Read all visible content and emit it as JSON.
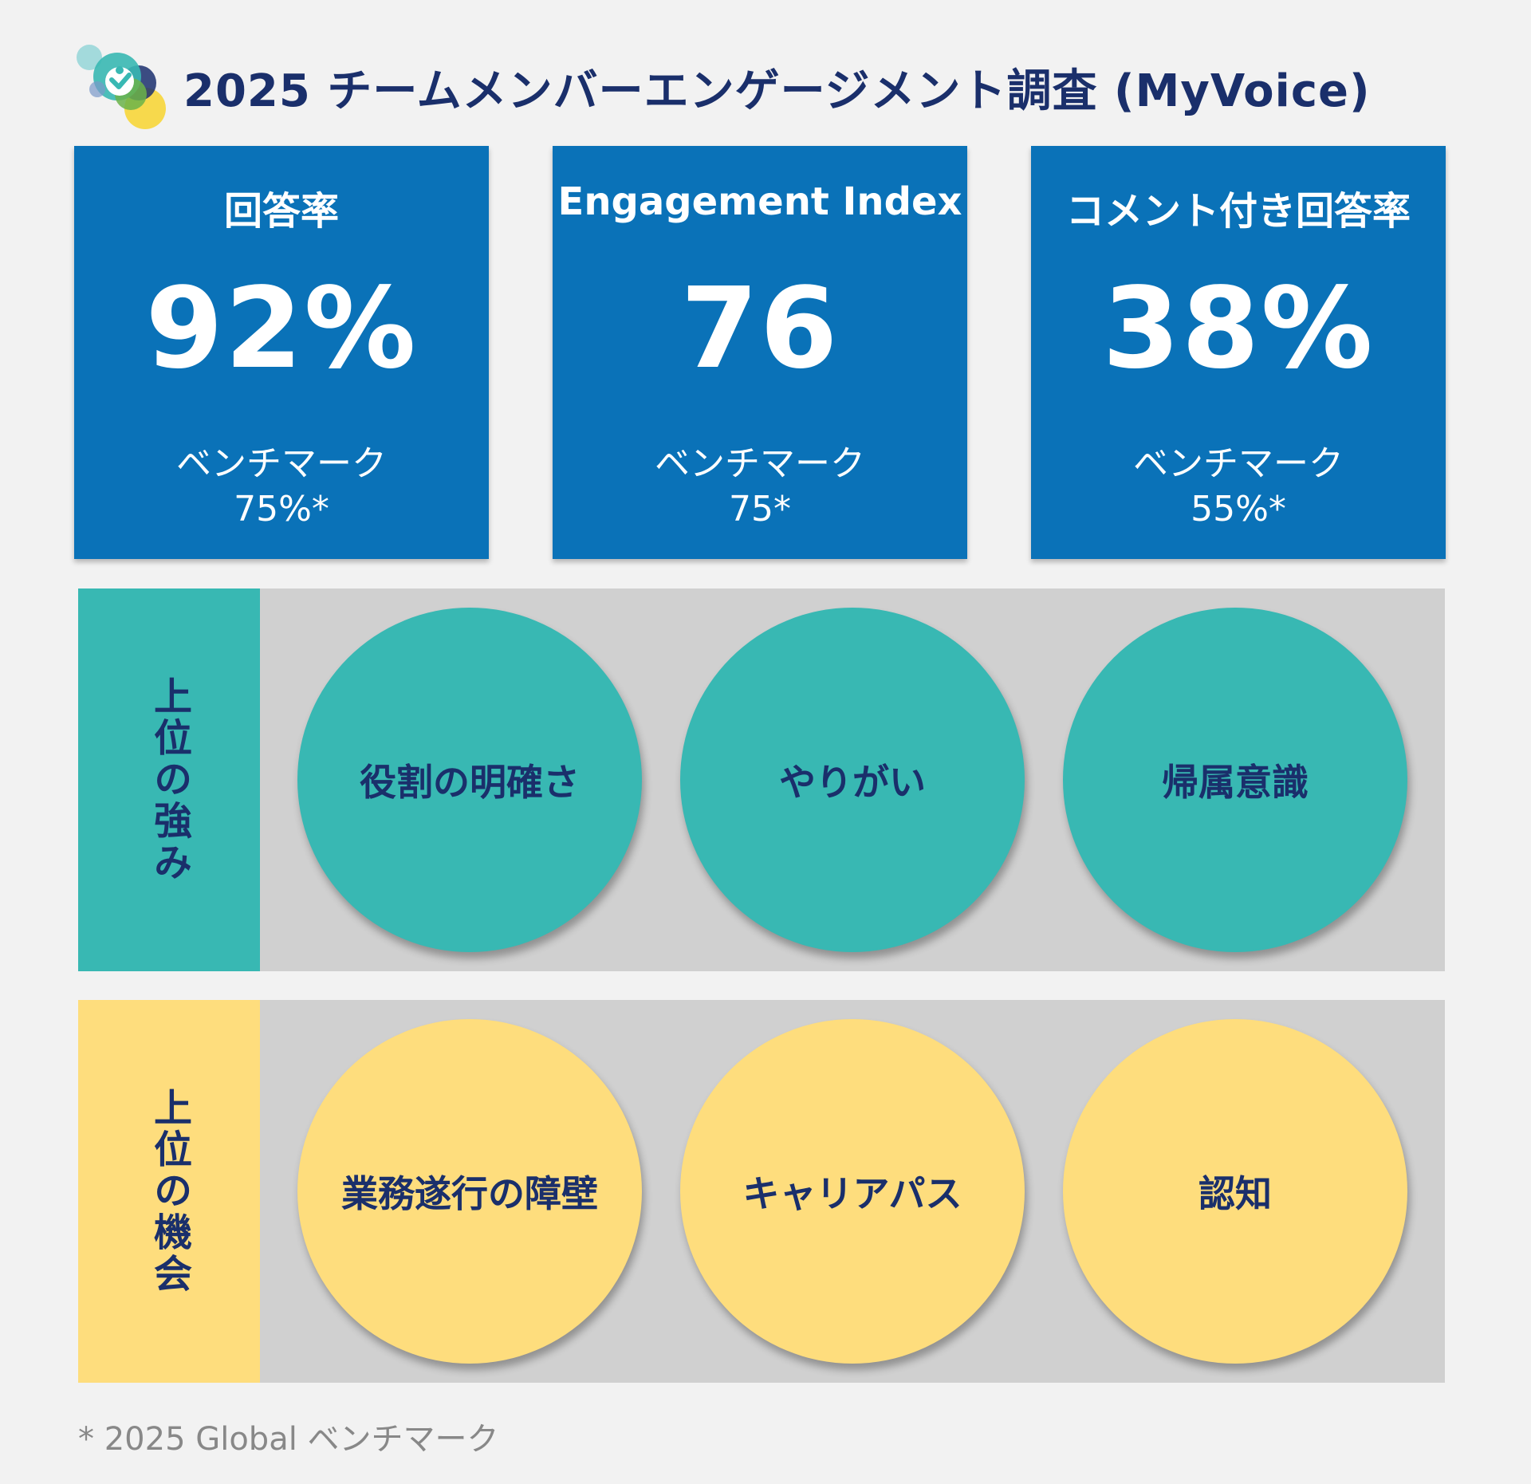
{
  "header": {
    "title": "2025 チームメンバーエンゲージメント調査 (MyVoice)"
  },
  "metrics": [
    {
      "label": "回答率",
      "value": "92%",
      "benchmark_label": "ベンチマーク",
      "benchmark_value": "75%*"
    },
    {
      "label": "Engagement Index",
      "value": "76",
      "benchmark_label": "ベンチマーク",
      "benchmark_value": "75*"
    },
    {
      "label": "コメント付き回答率",
      "value": "38%",
      "benchmark_label": "ベンチマーク",
      "benchmark_value": "55%*"
    }
  ],
  "strengths": {
    "label": "上位の強み",
    "items": [
      "役割の明確さ",
      "やりがい",
      "帰属意識"
    ]
  },
  "opportunities": {
    "label": "上位の機会",
    "items": [
      "業務遂行の障壁",
      "キャリアパス",
      "認知"
    ]
  },
  "footnote": "* 2025 Global ベンチマーク",
  "colors": {
    "title": "#1a2f6b",
    "card": "#0a72b8",
    "strength": "#38b8b3",
    "opportunity": "#fedd7d",
    "panel": "#d0d0d0"
  }
}
